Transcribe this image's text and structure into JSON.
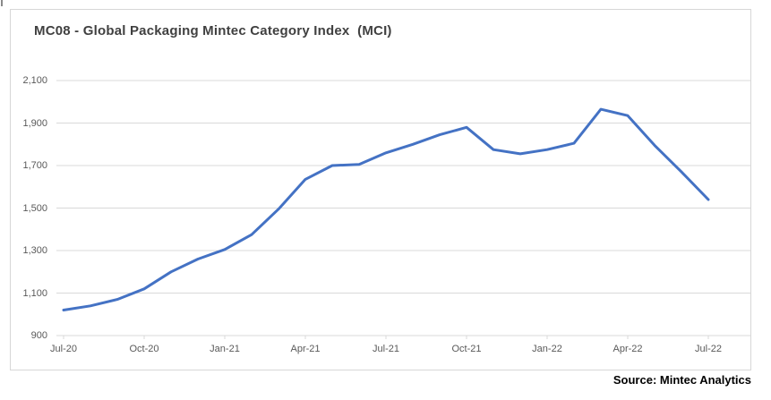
{
  "chart": {
    "source": "Source: Mintec Analytics",
    "colors": {
      "line": "#4472C4",
      "title_text": "#404040",
      "axis_text": "#595959",
      "gridline": "#D9D9D9",
      "border": "#D7D7D7",
      "source_text": "#000000",
      "background": "#FFFFFF"
    }
  },
  "chart_data": {
    "type": "line",
    "title": "MC08 - Global Packaging Mintec Category Index  (MCI)",
    "x": [
      "Jul-20",
      "Aug-20",
      "Sep-20",
      "Oct-20",
      "Nov-20",
      "Dec-20",
      "Jan-21",
      "Feb-21",
      "Mar-21",
      "Apr-21",
      "May-21",
      "Jun-21",
      "Jul-21",
      "Aug-21",
      "Sep-21",
      "Oct-21",
      "Nov-21",
      "Dec-21",
      "Jan-22",
      "Feb-22",
      "Mar-22",
      "Apr-22",
      "May-22",
      "Jun-22",
      "Jul-22"
    ],
    "values": [
      1020,
      1040,
      1070,
      1120,
      1200,
      1260,
      1305,
      1375,
      1495,
      1635,
      1700,
      1705,
      1760,
      1800,
      1845,
      1880,
      1775,
      1755,
      1775,
      1805,
      1965,
      1935,
      1795,
      1670,
      1540
    ],
    "x_tick_labels": [
      "Jul-20",
      "Oct-20",
      "Jan-21",
      "Apr-21",
      "Jul-21",
      "Oct-21",
      "Jan-22",
      "Apr-22",
      "Jul-22"
    ],
    "x_tick_every": 3,
    "y_ticks": [
      900,
      1100,
      1300,
      1500,
      1700,
      1900,
      2100
    ],
    "y_tick_labels": [
      "900",
      "1,100",
      "1,300",
      "1,500",
      "1,700",
      "1,900",
      "2,100"
    ],
    "ylim": [
      900,
      2100
    ],
    "xlabel": "",
    "ylabel": "",
    "grid": "horizontal",
    "legend": "none"
  }
}
